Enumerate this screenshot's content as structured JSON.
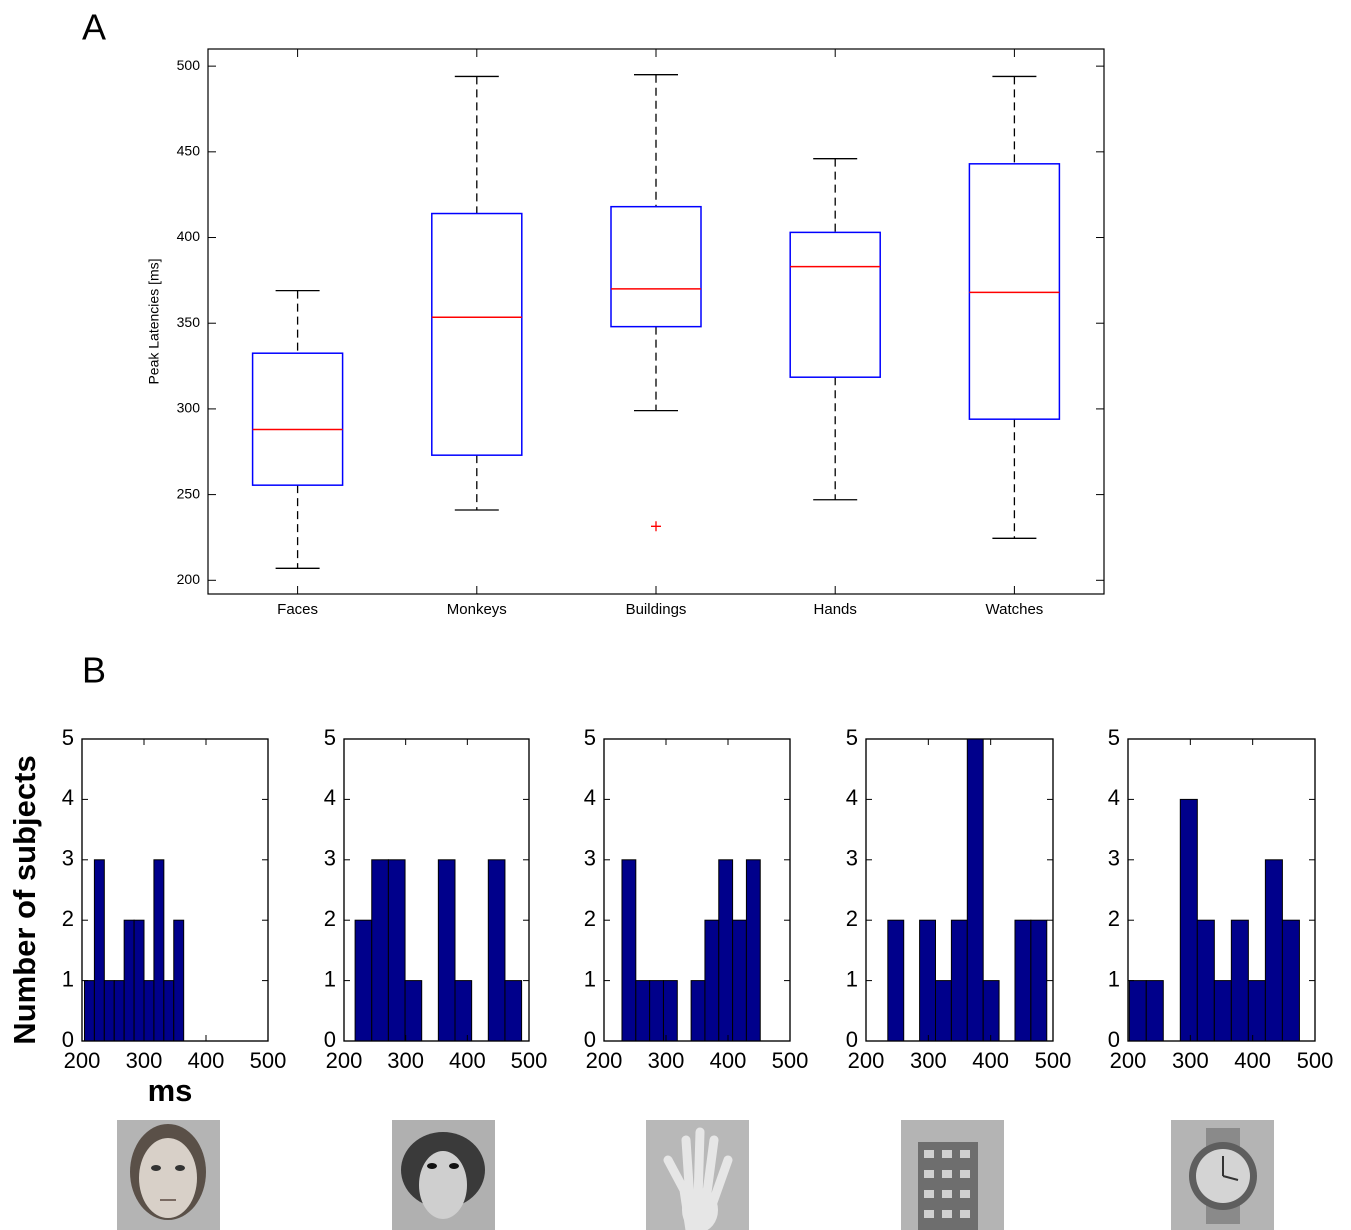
{
  "chart_data": [
    {
      "type": "box",
      "panel_label": "A",
      "ylabel": "Peak Latencies [ms]",
      "categories": [
        "Faces",
        "Monkeys",
        "Buildings",
        "Hands",
        "Watches"
      ],
      "boxes": [
        {
          "min": 207,
          "q1": 255.5,
          "median": 288,
          "q3": 332.5,
          "max": 369
        },
        {
          "min": 241,
          "q1": 273,
          "median": 353.5,
          "q3": 414,
          "max": 494
        },
        {
          "min": 299,
          "q1": 348,
          "median": 370,
          "q3": 418,
          "max": 495,
          "outliers": [
            231.5
          ]
        },
        {
          "min": 247,
          "q1": 318.5,
          "median": 383,
          "q3": 403,
          "max": 446
        },
        {
          "min": 224.5,
          "q1": 294,
          "median": 368,
          "q3": 443,
          "max": 494
        }
      ],
      "box_color": "#0000ff",
      "median_color": "#ff0000",
      "whisker_color": "#000000",
      "ylim": [
        192,
        510
      ],
      "yticks": [
        200,
        250,
        300,
        350,
        400,
        450,
        500
      ]
    },
    {
      "type": "histogram",
      "panel_label": "B",
      "ylabel": "Number of subjects",
      "xlabel": "ms",
      "bins": [
        204,
        220,
        236,
        252,
        268,
        284,
        300,
        316,
        332,
        348,
        364
      ],
      "counts": [
        1,
        3,
        1,
        1,
        2,
        2,
        1,
        3,
        1,
        2
      ],
      "color": "#00008b",
      "xlim": [
        200,
        500
      ],
      "ylim": [
        0,
        5
      ],
      "xticks": [
        200,
        300,
        400,
        500
      ],
      "yticks": [
        0,
        1,
        2,
        3,
        4,
        5
      ]
    },
    {
      "type": "histogram",
      "bins": [
        218,
        245,
        272,
        299,
        326,
        353,
        380,
        407,
        434,
        461,
        488
      ],
      "counts": [
        2,
        3,
        3,
        1,
        0,
        3,
        1,
        0,
        3,
        1
      ],
      "color": "#00008b",
      "xlim": [
        200,
        500
      ],
      "ylim": [
        0,
        5
      ],
      "xticks": [
        200,
        300,
        400,
        500
      ],
      "yticks": [
        0,
        1,
        2,
        3,
        4,
        5
      ]
    },
    {
      "type": "histogram",
      "bins": [
        229,
        251.3,
        273.6,
        295.9,
        318.2,
        340.5,
        362.8,
        385.1,
        407.4,
        429.7,
        452
      ],
      "counts": [
        3,
        1,
        1,
        1,
        0,
        1,
        2,
        3,
        2,
        3
      ],
      "color": "#00008b",
      "xlim": [
        200,
        500
      ],
      "ylim": [
        0,
        5
      ],
      "xticks": [
        200,
        300,
        400,
        500
      ],
      "yticks": [
        0,
        1,
        2,
        3,
        4,
        5
      ]
    },
    {
      "type": "histogram",
      "bins": [
        235,
        260.5,
        286,
        311.5,
        337,
        362.5,
        388,
        413.5,
        439,
        464.5,
        490
      ],
      "counts": [
        2,
        0,
        2,
        1,
        2,
        5,
        1,
        0,
        2,
        2
      ],
      "color": "#00008b",
      "xlim": [
        200,
        500
      ],
      "ylim": [
        0,
        5
      ],
      "xticks": [
        200,
        300,
        400,
        500
      ],
      "yticks": [
        0,
        1,
        2,
        3,
        4,
        5
      ]
    },
    {
      "type": "histogram",
      "bins": [
        202,
        229.3,
        256.6,
        283.9,
        311.2,
        338.5,
        365.8,
        393.1,
        420.4,
        447.7,
        475
      ],
      "counts": [
        1,
        1,
        0,
        4,
        2,
        1,
        2,
        1,
        3,
        2
      ],
      "color": "#00008b",
      "xlim": [
        200,
        500
      ],
      "ylim": [
        0,
        5
      ],
      "xticks": [
        200,
        300,
        400,
        500
      ],
      "yticks": [
        0,
        1,
        2,
        3,
        4,
        5
      ]
    }
  ]
}
